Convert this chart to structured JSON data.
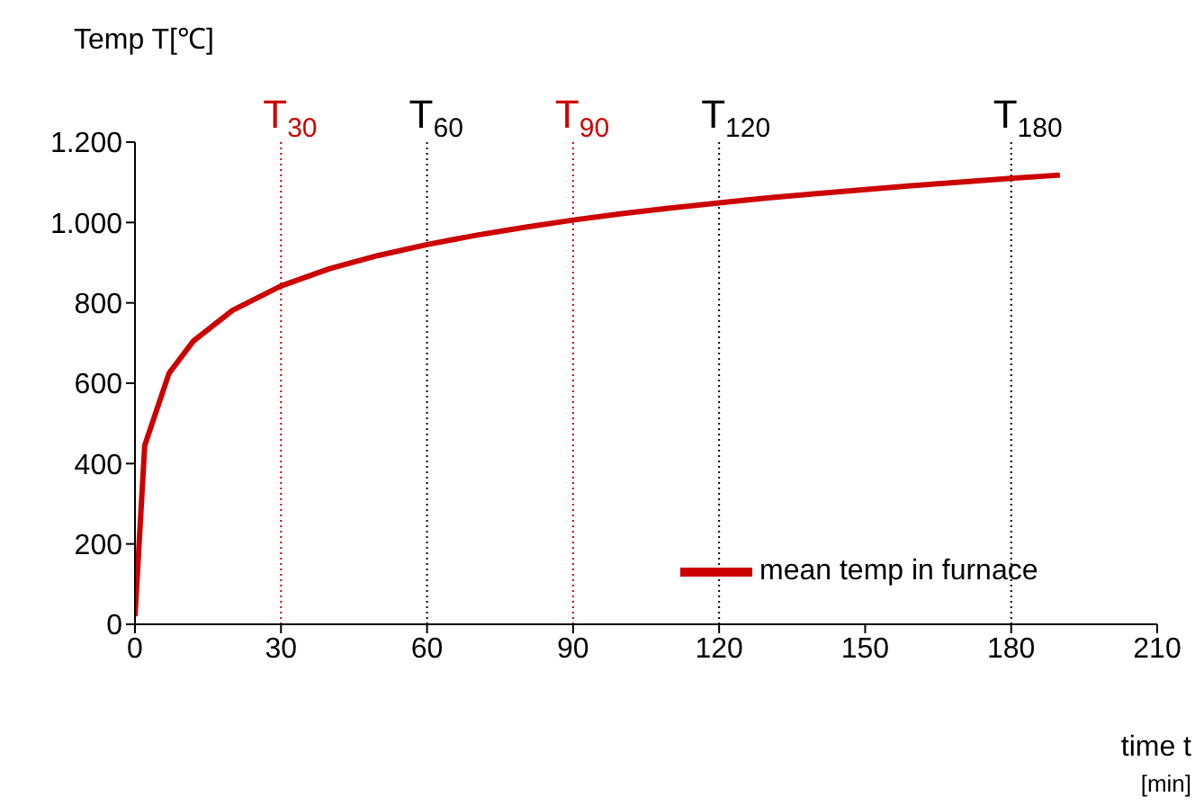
{
  "chart_data": {
    "type": "line",
    "ylabel": "Temp T[℃]",
    "xlabel": "time t [min]",
    "x": [
      0,
      2,
      7,
      12,
      20,
      30,
      40,
      50,
      60,
      70,
      80,
      90,
      100,
      110,
      120,
      130,
      140,
      150,
      160,
      170,
      180,
      190
    ],
    "series": [
      {
        "name": "mean temp in furnace",
        "color": "#cc0000",
        "values": [
          20,
          445,
          625,
          705,
          781,
          842,
          885,
          918,
          945,
          968,
          988,
          1006,
          1022,
          1036,
          1049,
          1061,
          1072,
          1082,
          1092,
          1101,
          1110,
          1118
        ]
      }
    ],
    "xlim": [
      0,
      210
    ],
    "xticks": [
      0,
      30,
      60,
      90,
      120,
      150,
      180,
      210
    ],
    "ylim": [
      0,
      1200
    ],
    "yticks": [
      0,
      200,
      400,
      600,
      800,
      {
        "value": 1000,
        "label": "1.000"
      },
      {
        "value": 1200,
        "label": "1.200"
      }
    ],
    "ref_lines": [
      {
        "axis": "x",
        "value": 30,
        "label": "T$_{30}$",
        "color": "#cc0000",
        "line_style": "dotted"
      },
      {
        "axis": "x",
        "value": 60,
        "label": "T$_{60}$",
        "color": "#000000",
        "line_style": "dotted"
      },
      {
        "axis": "x",
        "value": 90,
        "label": "T$_{90}$",
        "color": "#cc0000",
        "line_style": "dotted"
      },
      {
        "axis": "x",
        "value": 120,
        "label": "T$_{120}$",
        "color": "#000000",
        "line_style": "dotted"
      },
      {
        "axis": "x",
        "value": 180,
        "label": "T$_{180}$",
        "color": "#000000",
        "line_style": "dotted"
      }
    ],
    "grid": false,
    "legend": "bottom right",
    "marker": "none",
    "line_style": "solid"
  }
}
